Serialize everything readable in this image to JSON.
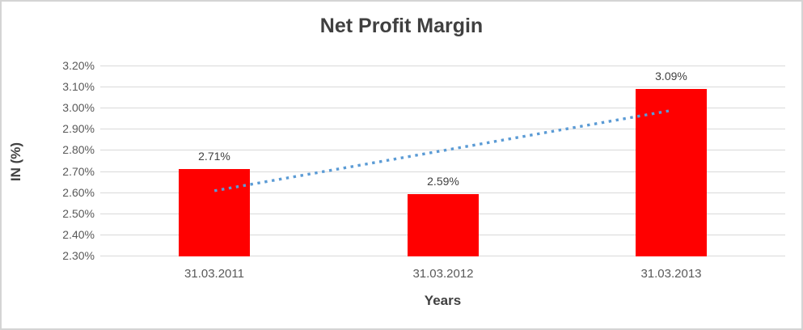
{
  "chart_data": {
    "type": "bar",
    "title": "Net Profit Margin",
    "xlabel": "Years",
    "ylabel": "IN (%)",
    "categories": [
      "31.03.2011",
      "31.03.2012",
      "31.03.2013"
    ],
    "values": [
      2.71,
      2.59,
      3.09
    ],
    "data_labels": [
      "2.71%",
      "2.59%",
      "3.09%"
    ],
    "ylim": [
      2.3,
      3.2
    ],
    "ytick_values": [
      3.2,
      3.1,
      3.0,
      2.9,
      2.8,
      2.7,
      2.6,
      2.5,
      2.4,
      2.3
    ],
    "ytick_labels": [
      "3.20%",
      "3.10%",
      "3.00%",
      "2.90%",
      "2.80%",
      "2.70%",
      "2.60%",
      "2.50%",
      "2.40%",
      "2.30%"
    ],
    "grid": true,
    "legend": "none",
    "bar_color": "#FF0000",
    "gridline_color": "#D9D9D9",
    "title_color": "#404040",
    "tick_color": "#595959",
    "trendline": {
      "type": "linear",
      "style": "dotted",
      "color": "#5B9BD5",
      "start_value": 2.607,
      "end_value": 2.987
    }
  }
}
